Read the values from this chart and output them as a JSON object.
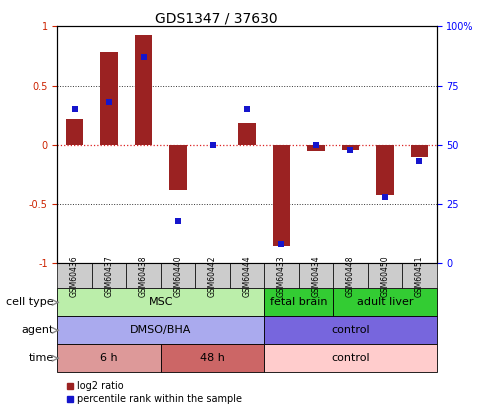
{
  "title": "GDS1347 / 37630",
  "samples": [
    "GSM60436",
    "GSM60437",
    "GSM60438",
    "GSM60440",
    "GSM60442",
    "GSM60444",
    "GSM60433",
    "GSM60434",
    "GSM60448",
    "GSM60450",
    "GSM60451"
  ],
  "log2_ratio": [
    0.22,
    0.78,
    0.93,
    -0.38,
    0.0,
    0.18,
    -0.85,
    -0.05,
    -0.04,
    -0.42,
    -0.1
  ],
  "percentile_rank": [
    65,
    68,
    87,
    18,
    50,
    65,
    8,
    50,
    48,
    28,
    43
  ],
  "ylim_left": [
    -1,
    1
  ],
  "ylim_right": [
    0,
    100
  ],
  "left_ticks": [
    -1,
    -0.5,
    0,
    0.5,
    1
  ],
  "right_ticks": [
    0,
    25,
    50,
    75,
    100
  ],
  "right_tick_labels": [
    "0",
    "25",
    "50",
    "75",
    "100%"
  ],
  "bar_color": "#9B2222",
  "dot_color": "#1515CC",
  "zero_line_color": "#DD2222",
  "dotted_line_color": "#333333",
  "cell_type_groups": [
    {
      "label": "MSC",
      "start": 0,
      "end": 6,
      "color": "#BBEEAA",
      "text_color": "#000000"
    },
    {
      "label": "fetal brain",
      "start": 6,
      "end": 8,
      "color": "#33CC33",
      "text_color": "#000000"
    },
    {
      "label": "adult liver",
      "start": 8,
      "end": 11,
      "color": "#33CC33",
      "text_color": "#000000"
    }
  ],
  "agent_groups": [
    {
      "label": "DMSO/BHA",
      "start": 0,
      "end": 6,
      "color": "#AAAAEE",
      "text_color": "#000000"
    },
    {
      "label": "control",
      "start": 6,
      "end": 11,
      "color": "#7766DD",
      "text_color": "#000000"
    }
  ],
  "time_groups": [
    {
      "label": "6 h",
      "start": 0,
      "end": 3,
      "color": "#DD9999",
      "text_color": "#000000"
    },
    {
      "label": "48 h",
      "start": 3,
      "end": 6,
      "color": "#CC6666",
      "text_color": "#000000"
    },
    {
      "label": "control",
      "start": 6,
      "end": 11,
      "color": "#FFCCCC",
      "text_color": "#000000"
    }
  ],
  "row_labels": [
    "cell type",
    "agent",
    "time"
  ],
  "legend_bar_label": "log2 ratio",
  "legend_dot_label": "percentile rank within the sample",
  "tick_fontsize": 7,
  "title_fontsize": 10,
  "bar_width": 0.5,
  "sample_label_fontsize": 6.5,
  "annotation_fontsize": 8,
  "row_label_fontsize": 8
}
